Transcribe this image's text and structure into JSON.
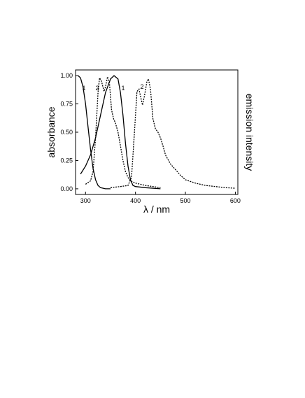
{
  "chart_data": {
    "type": "line",
    "xlabel": "λ / nm",
    "ylabel": "absorbance",
    "y2label": "emission intensity",
    "xlim": [
      280,
      605
    ],
    "ylim": [
      -0.05,
      1.05
    ],
    "xticks": [
      300,
      400,
      500,
      600
    ],
    "yticks": [
      {
        "value": 0,
        "label": "0.00"
      },
      {
        "value": 0.25,
        "label": "0.25"
      },
      {
        "value": 0.5,
        "label": "0.50"
      },
      {
        "value": 0.75,
        "label": "0.75"
      },
      {
        "value": 1,
        "label": "1.00"
      }
    ],
    "series": [
      {
        "name": "1",
        "color": "#000000",
        "line_style": "solid",
        "x": [
          285,
          290,
          295,
          300,
          305,
          310,
          315,
          320,
          325,
          330,
          340,
          350
        ],
        "values": [
          1.0,
          0.98,
          0.9,
          0.75,
          0.55,
          0.35,
          0.18,
          0.08,
          0.03,
          0.01,
          0.0,
          0.0
        ]
      },
      {
        "name": "2",
        "color": "#000000",
        "line_style": "solid",
        "x": [
          290,
          300,
          310,
          320,
          330,
          340,
          350,
          357,
          365,
          370,
          375,
          380,
          385,
          390,
          395,
          400,
          420,
          450
        ],
        "values": [
          0.13,
          0.2,
          0.3,
          0.45,
          0.65,
          0.85,
          0.97,
          1.0,
          0.97,
          0.85,
          0.65,
          0.4,
          0.2,
          0.08,
          0.03,
          0.02,
          0.01,
          0.0
        ]
      },
      {
        "name": "1",
        "color": "#000000",
        "line_style": "dotted",
        "x": [
          300,
          310,
          315,
          320,
          325,
          328,
          332,
          337,
          340,
          344,
          348,
          352,
          356,
          360,
          365,
          370,
          375,
          380,
          385,
          390,
          400,
          420,
          450
        ],
        "values": [
          0.04,
          0.07,
          0.15,
          0.45,
          0.85,
          0.98,
          0.95,
          0.86,
          0.9,
          0.99,
          0.93,
          0.7,
          0.62,
          0.58,
          0.5,
          0.38,
          0.25,
          0.15,
          0.1,
          0.07,
          0.05,
          0.03,
          0.01
        ]
      },
      {
        "name": "2",
        "color": "#000000",
        "line_style": "dotted",
        "x": [
          350,
          370,
          385,
          392,
          398,
          403,
          407,
          411,
          414,
          418,
          423,
          426,
          430,
          435,
          440,
          445,
          450,
          455,
          460,
          470,
          480,
          490,
          500,
          520,
          540,
          560,
          580,
          600
        ],
        "values": [
          0.01,
          0.02,
          0.03,
          0.1,
          0.5,
          0.86,
          0.88,
          0.8,
          0.74,
          0.82,
          0.95,
          0.97,
          0.88,
          0.62,
          0.53,
          0.5,
          0.45,
          0.38,
          0.3,
          0.22,
          0.17,
          0.12,
          0.08,
          0.05,
          0.03,
          0.02,
          0.01,
          0.005
        ]
      }
    ]
  }
}
